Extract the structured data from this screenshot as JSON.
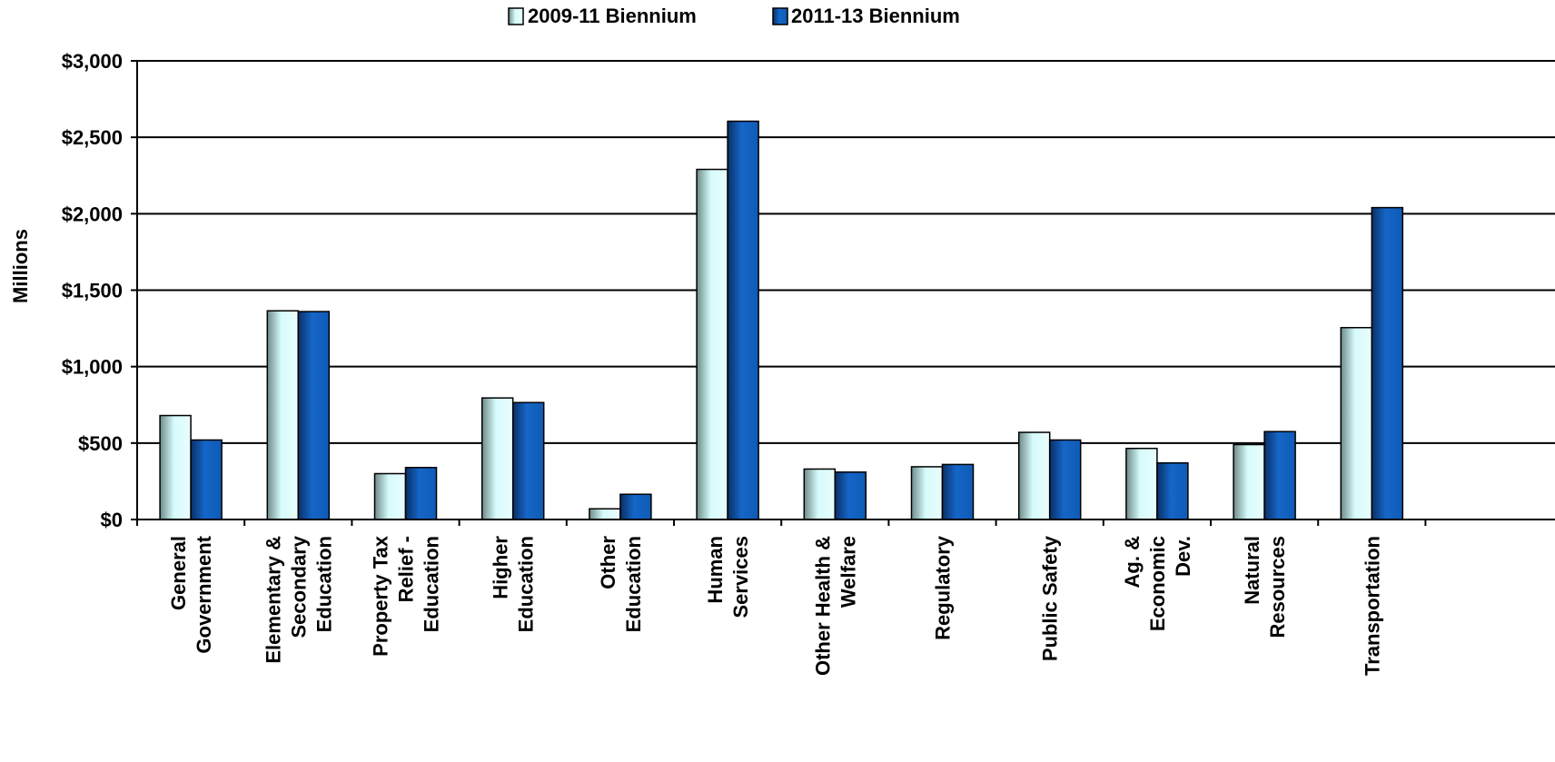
{
  "chart_data": {
    "type": "bar",
    "title": "",
    "ylabel": "Millions",
    "xlabel": "",
    "ylim": [
      0,
      3000
    ],
    "y_ticks": [
      0,
      500,
      1000,
      1500,
      2000,
      2500,
      3000
    ],
    "y_tick_labels": [
      "$0",
      "$500",
      "$1,000",
      "$1,500",
      "$2,000",
      "$2,500",
      "$3,000"
    ],
    "grid": true,
    "legend_position": "top",
    "categories": [
      [
        "General",
        "Government"
      ],
      [
        "Elementary &",
        "Secondary",
        "Education"
      ],
      [
        "Property Tax",
        "Relief -",
        "Education"
      ],
      [
        "Higher",
        "Education"
      ],
      [
        "Other",
        "Education"
      ],
      [
        "Human",
        "Services"
      ],
      [
        "Other Health &",
        "Welfare"
      ],
      [
        "Regulatory"
      ],
      [
        "Public Safety"
      ],
      [
        "Ag. &",
        "Economic",
        "Dev."
      ],
      [
        "Natural",
        "Resources"
      ],
      [
        "Transportation"
      ]
    ],
    "series": [
      {
        "name": "2009-11 Biennium",
        "color": "#bff2f2",
        "values": [
          680,
          1365,
          300,
          795,
          70,
          2290,
          330,
          345,
          570,
          465,
          490,
          1255
        ]
      },
      {
        "name": "2011-13 Biennium",
        "color": "#0f5bb5",
        "values": [
          520,
          1360,
          340,
          765,
          165,
          2605,
          310,
          360,
          520,
          370,
          575,
          2040
        ]
      }
    ]
  }
}
